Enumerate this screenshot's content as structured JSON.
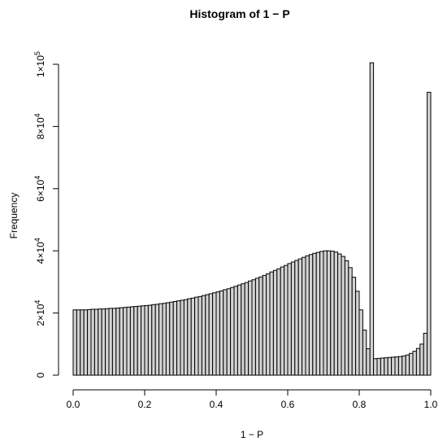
{
  "chart_data": {
    "type": "bar",
    "title": "Histogram of 1 − P",
    "xlabel": "1 − P",
    "ylabel": "Frequency",
    "bar_fill": "#d3d3d3",
    "bin_width": 0.01,
    "bin_start": 0.0,
    "xlim": [
      0,
      1
    ],
    "ylim": [
      0,
      100000
    ],
    "x_ticks": [
      {
        "value": 0.0,
        "label": "0.0"
      },
      {
        "value": 0.2,
        "label": "0.2"
      },
      {
        "value": 0.4,
        "label": "0.4"
      },
      {
        "value": 0.6,
        "label": "0.6"
      },
      {
        "value": 0.8,
        "label": "0.8"
      },
      {
        "value": 1.0,
        "label": "1.0"
      }
    ],
    "y_ticks": [
      {
        "value": 0,
        "coef": "0",
        "exp": ""
      },
      {
        "value": 20000,
        "coef": "2×10",
        "exp": "4"
      },
      {
        "value": 40000,
        "coef": "4×10",
        "exp": "4"
      },
      {
        "value": 60000,
        "coef": "6×10",
        "exp": "4"
      },
      {
        "value": 80000,
        "coef": "8×10",
        "exp": "4"
      },
      {
        "value": 100000,
        "coef": "1×10",
        "exp": "5"
      }
    ],
    "values": [
      21000,
      21000,
      21000,
      21000,
      21100,
      21200,
      21200,
      21300,
      21300,
      21400,
      21500,
      21500,
      21600,
      21700,
      21800,
      21900,
      22000,
      22100,
      22200,
      22300,
      22400,
      22500,
      22700,
      22800,
      23000,
      23100,
      23300,
      23500,
      23700,
      23900,
      24100,
      24300,
      24600,
      24800,
      25100,
      25300,
      25600,
      25900,
      26200,
      26500,
      26800,
      27100,
      27500,
      27800,
      28200,
      28600,
      29000,
      29400,
      29800,
      30300,
      30700,
      31200,
      31600,
      32100,
      32600,
      33200,
      33700,
      34200,
      34800,
      35300,
      35900,
      36400,
      36900,
      37400,
      37900,
      38400,
      38800,
      39200,
      39500,
      39800,
      40000,
      40000,
      39900,
      39600,
      39000,
      38200,
      36800,
      34600,
      31500,
      27000,
      21000,
      14500,
      8500,
      100500,
      5300,
      5400,
      5500,
      5600,
      5700,
      5800,
      5900,
      6000,
      6200,
      6500,
      7000,
      7700,
      8600,
      10000,
      13500,
      91000
    ]
  }
}
